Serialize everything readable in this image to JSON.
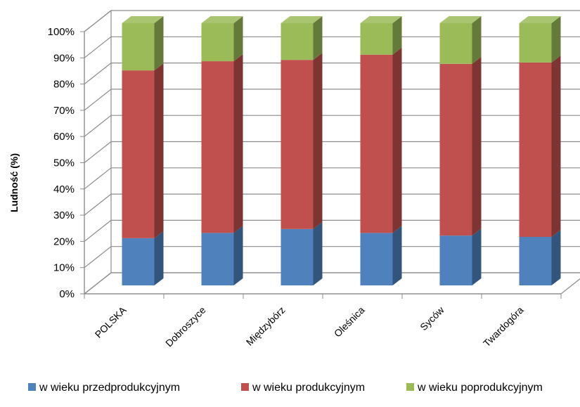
{
  "chart_data": {
    "type": "bar",
    "stacked": true,
    "percent_stacked": true,
    "three_d": true,
    "title": "",
    "xlabel": "",
    "ylabel": "Ludność (%)",
    "ylim": [
      0,
      100
    ],
    "yticks": [
      "0%",
      "10%",
      "20%",
      "30%",
      "40%",
      "50%",
      "60%",
      "70%",
      "80%",
      "90%",
      "100%"
    ],
    "grid": true,
    "legend_position": "bottom",
    "categories": [
      "POLSKA",
      "Dobroszyce",
      "Międzybórz",
      "Oleśnica",
      "Syców",
      "Twardogóra"
    ],
    "series": [
      {
        "name": "w wieku przedprodukcyjnym",
        "color": "#4F81BD",
        "values": [
          18,
          20,
          21.5,
          20,
          19,
          18.5
        ]
      },
      {
        "name": "w wieku produkcyjnym",
        "color": "#C0504D",
        "values": [
          64,
          65.5,
          64.5,
          68,
          65.5,
          66.5
        ]
      },
      {
        "name": "w wieku poprodukcyjnym",
        "color": "#9BBB59",
        "values": [
          18,
          14.5,
          14,
          12,
          15.5,
          15
        ]
      }
    ]
  }
}
